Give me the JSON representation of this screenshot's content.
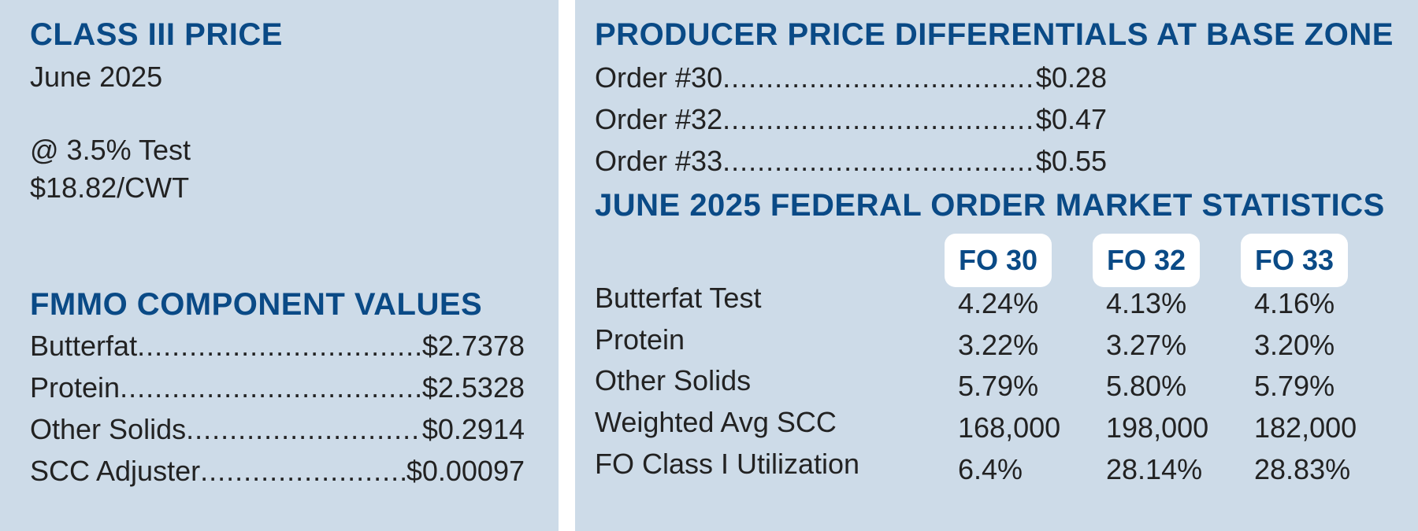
{
  "class3": {
    "heading": "CLASS III PRICE",
    "month": "June 2025",
    "test": "@ 3.5% Test",
    "price": "$18.82/CWT"
  },
  "fmmo": {
    "heading": "FMMO COMPONENT VALUES",
    "items": [
      {
        "label": "Butterfat",
        "value": "$2.7378"
      },
      {
        "label": "Protein",
        "value": "$2.5328"
      },
      {
        "label": "Other Solids",
        "value": "$0.2914"
      },
      {
        "label": "SCC Adjuster",
        "value": "$0.00097"
      }
    ]
  },
  "ppd": {
    "heading": "PRODUCER PRICE DIFFERENTIALS AT BASE ZONE",
    "items": [
      {
        "label": "Order #30",
        "value": "$0.28"
      },
      {
        "label": "Order #32",
        "value": "$0.47"
      },
      {
        "label": "Order #33",
        "value": "$0.55"
      }
    ]
  },
  "stats": {
    "heading": "JUNE 2025 FEDERAL ORDER MARKET STATISTICS",
    "columns": [
      "FO 30",
      "FO 32",
      "FO 33"
    ],
    "rows": [
      {
        "label": "Butterfat Test",
        "values": [
          "4.24%",
          "4.13%",
          "4.16%"
        ]
      },
      {
        "label": "Protein",
        "values": [
          "3.22%",
          "3.27%",
          "3.20%"
        ]
      },
      {
        "label": "Other Solids",
        "values": [
          "5.79%",
          "5.80%",
          "5.79%"
        ]
      },
      {
        "label": "Weighted Avg SCC",
        "values": [
          "168,000",
          "198,000",
          "182,000"
        ]
      },
      {
        "label": "FO Class I Utilization",
        "values": [
          "6.4%",
          "28.14%",
          "28.83%"
        ]
      }
    ]
  },
  "colors": {
    "panel_bg": "#cddbe8",
    "heading": "#0a4a86",
    "text": "#222222"
  }
}
